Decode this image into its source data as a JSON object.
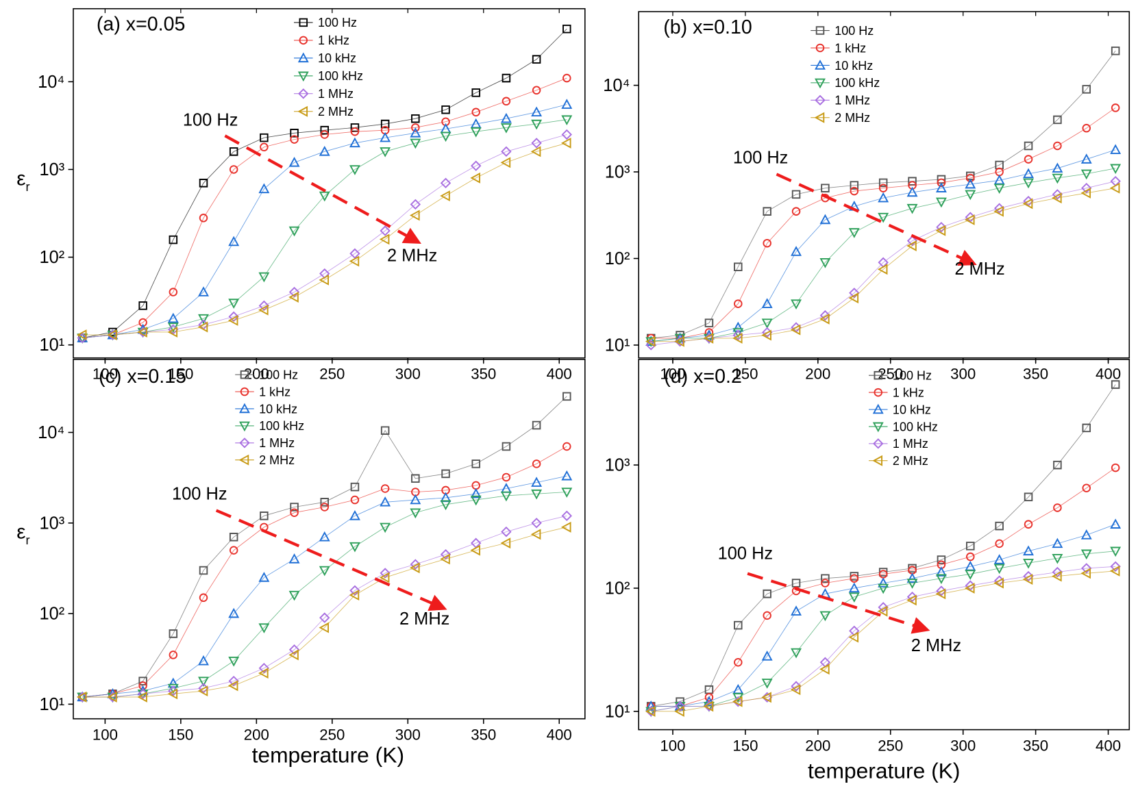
{
  "chart_data": [
    {
      "type": "line",
      "title": "(a) x=0.05",
      "y_label": "ε",
      "y_label_sub": "r",
      "x": [
        85,
        105,
        125,
        145,
        165,
        185,
        205,
        225,
        245,
        265,
        285,
        305,
        325,
        345,
        365,
        385,
        405
      ],
      "xlim": [
        79,
        417
      ],
      "xticks": [
        100,
        150,
        200,
        250,
        300,
        350,
        400
      ],
      "ylim": [
        7.1,
        68000
      ],
      "y_scale": "log",
      "yticks": [
        {
          "value": 10,
          "label": "10¹"
        },
        {
          "value": 100,
          "label": "10²"
        },
        {
          "value": 1000,
          "label": "10³"
        },
        {
          "value": 10000,
          "label": "10⁴"
        }
      ],
      "annotations": [
        "100 Hz",
        "2 MHz"
      ],
      "series": [
        {
          "name": "100 Hz",
          "color": "#000000",
          "marker": "square",
          "values": [
            12,
            14,
            28,
            158,
            700,
            1600,
            2300,
            2600,
            2800,
            3000,
            3300,
            3800,
            4800,
            7500,
            11000,
            18000,
            40000
          ]
        },
        {
          "name": "1 kHz",
          "color": "#e8302a",
          "marker": "circle",
          "values": [
            12,
            13,
            18,
            40,
            280,
            1000,
            1800,
            2200,
            2500,
            2700,
            2800,
            3000,
            3500,
            4500,
            6000,
            8000,
            11000
          ]
        },
        {
          "name": "10 kHz",
          "color": "#1f6fd6",
          "marker": "triangle-up",
          "values": [
            12,
            13,
            15,
            20,
            40,
            150,
            600,
            1200,
            1600,
            2000,
            2300,
            2600,
            2900,
            3300,
            3800,
            4500,
            5500
          ]
        },
        {
          "name": "100 kHz",
          "color": "#2ea05a",
          "marker": "triangle-down",
          "values": [
            12,
            13,
            14,
            16,
            20,
            30,
            60,
            200,
            500,
            1000,
            1600,
            2000,
            2400,
            2700,
            3000,
            3300,
            3700
          ]
        },
        {
          "name": "1 MHz",
          "color": "#a86ee0",
          "marker": "diamond",
          "values": [
            12,
            13,
            14,
            15,
            17,
            21,
            28,
            40,
            65,
            110,
            200,
            400,
            700,
            1100,
            1600,
            2000,
            2500
          ]
        },
        {
          "name": "2 MHz",
          "color": "#c89a14",
          "marker": "triangle-left",
          "values": [
            13,
            13,
            14,
            14,
            16,
            19,
            25,
            35,
            55,
            90,
            160,
            300,
            500,
            800,
            1200,
            1600,
            2000
          ]
        }
      ]
    },
    {
      "type": "line",
      "title": "(b) x=0.10",
      "x": [
        85,
        105,
        125,
        145,
        165,
        185,
        205,
        225,
        245,
        265,
        285,
        305,
        325,
        345,
        365,
        385,
        405
      ],
      "xlim": [
        76.5,
        414.5
      ],
      "xticks": [
        100,
        150,
        200,
        250,
        300,
        350,
        400
      ],
      "ylim": [
        7.1,
        71000
      ],
      "y_scale": "log",
      "yticks": [
        {
          "value": 10,
          "label": "10¹"
        },
        {
          "value": 100,
          "label": "10²"
        },
        {
          "value": 1000,
          "label": "10³"
        },
        {
          "value": 10000,
          "label": "10⁴"
        }
      ],
      "annotations": [
        "100 Hz",
        "2 MHz"
      ],
      "series": [
        {
          "name": "100 Hz",
          "color": "#555555",
          "marker": "square",
          "values": [
            12,
            13,
            18,
            80,
            350,
            550,
            650,
            700,
            750,
            780,
            820,
            900,
            1200,
            2000,
            4000,
            9000,
            25000
          ]
        },
        {
          "name": "1 kHz",
          "color": "#e8302a",
          "marker": "circle",
          "values": [
            12,
            12,
            14,
            30,
            150,
            350,
            500,
            600,
            650,
            700,
            750,
            850,
            1000,
            1400,
            2000,
            3200,
            5500
          ]
        },
        {
          "name": "10 kHz",
          "color": "#1f6fd6",
          "marker": "triangle-up",
          "values": [
            11,
            12,
            13,
            16,
            30,
            120,
            280,
            400,
            500,
            580,
            650,
            720,
            800,
            950,
            1100,
            1400,
            1800
          ]
        },
        {
          "name": "100 kHz",
          "color": "#2ea05a",
          "marker": "triangle-down",
          "values": [
            11,
            12,
            12,
            14,
            18,
            30,
            90,
            200,
            300,
            380,
            450,
            550,
            650,
            750,
            850,
            950,
            1100
          ]
        },
        {
          "name": "1 MHz",
          "color": "#a86ee0",
          "marker": "diamond",
          "values": [
            10,
            11,
            12,
            13,
            14,
            16,
            22,
            40,
            90,
            160,
            230,
            300,
            380,
            460,
            550,
            650,
            780
          ]
        },
        {
          "name": "2 MHz",
          "color": "#c89a14",
          "marker": "triangle-left",
          "values": [
            11,
            11,
            12,
            12,
            13,
            15,
            20,
            35,
            75,
            140,
            210,
            280,
            350,
            430,
            500,
            570,
            650
          ]
        }
      ]
    },
    {
      "type": "line",
      "title": "(c) x=0.15",
      "y_label": "ε",
      "y_label_sub": "r",
      "x_label": "temperature (K)",
      "x": [
        85,
        105,
        125,
        145,
        165,
        185,
        205,
        225,
        245,
        265,
        285,
        305,
        325,
        345,
        365,
        385,
        405
      ],
      "xlim": [
        79,
        417
      ],
      "xticks": [
        100,
        150,
        200,
        250,
        300,
        350,
        400
      ],
      "ylim": [
        6.9,
        64000
      ],
      "y_scale": "log",
      "yticks": [
        {
          "value": 10,
          "label": "10¹"
        },
        {
          "value": 100,
          "label": "10²"
        },
        {
          "value": 1000,
          "label": "10³"
        },
        {
          "value": 10000,
          "label": "10⁴"
        }
      ],
      "annotations": [
        "100 Hz",
        "2 MHz"
      ],
      "series": [
        {
          "name": "100 Hz",
          "color": "#555555",
          "marker": "square",
          "values": [
            12,
            13,
            18,
            60,
            300,
            700,
            1200,
            1500,
            1700,
            2500,
            10500,
            3100,
            3500,
            4500,
            7000,
            12000,
            25000
          ]
        },
        {
          "name": "1 kHz",
          "color": "#e8302a",
          "marker": "circle",
          "values": [
            12,
            13,
            16,
            35,
            150,
            500,
            900,
            1300,
            1500,
            1800,
            2400,
            2200,
            2300,
            2600,
            3200,
            4500,
            7000
          ]
        },
        {
          "name": "10 kHz",
          "color": "#1f6fd6",
          "marker": "triangle-up",
          "values": [
            12,
            13,
            14,
            17,
            30,
            100,
            250,
            400,
            700,
            1200,
            1700,
            1800,
            1900,
            2100,
            2400,
            2800,
            3300
          ]
        },
        {
          "name": "100 kHz",
          "color": "#2ea05a",
          "marker": "triangle-down",
          "values": [
            12,
            12,
            13,
            15,
            18,
            30,
            70,
            160,
            300,
            550,
            900,
            1300,
            1600,
            1800,
            2000,
            2100,
            2200
          ]
        },
        {
          "name": "1 MHz",
          "color": "#a86ee0",
          "marker": "diamond",
          "values": [
            12,
            12,
            13,
            14,
            15,
            18,
            25,
            40,
            90,
            180,
            280,
            350,
            450,
            600,
            800,
            1000,
            1200
          ]
        },
        {
          "name": "2 MHz",
          "color": "#c89a14",
          "marker": "triangle-left",
          "values": [
            12,
            12,
            12,
            13,
            14,
            16,
            22,
            35,
            70,
            160,
            250,
            320,
            400,
            500,
            600,
            750,
            900
          ]
        }
      ]
    },
    {
      "type": "line",
      "title": "(d) x=0.2",
      "x_label": "temperature (K)",
      "x": [
        85,
        105,
        125,
        145,
        165,
        185,
        205,
        225,
        245,
        265,
        285,
        305,
        325,
        345,
        365,
        385,
        405
      ],
      "xlim": [
        76.5,
        414.5
      ],
      "xticks": [
        100,
        150,
        200,
        250,
        300,
        350,
        400
      ],
      "ylim": [
        7.1,
        7200
      ],
      "y_scale": "log",
      "yticks": [
        {
          "value": 10,
          "label": "10¹"
        },
        {
          "value": 100,
          "label": "10²"
        },
        {
          "value": 1000,
          "label": "10³"
        }
      ],
      "annotations": [
        "100 Hz",
        "2 MHz"
      ],
      "series": [
        {
          "name": "100 Hz",
          "color": "#555555",
          "marker": "square",
          "values": [
            11,
            12,
            15,
            50,
            90,
            110,
            120,
            125,
            135,
            145,
            170,
            220,
            320,
            550,
            1000,
            2000,
            4500
          ]
        },
        {
          "name": "1 kHz",
          "color": "#e8302a",
          "marker": "circle",
          "values": [
            11,
            11,
            13,
            25,
            60,
            95,
            110,
            120,
            130,
            140,
            155,
            180,
            230,
            330,
            450,
            650,
            950
          ]
        },
        {
          "name": "10 kHz",
          "color": "#1f6fd6",
          "marker": "triangle-up",
          "values": [
            11,
            11,
            12,
            15,
            28,
            65,
            90,
            100,
            110,
            120,
            135,
            150,
            170,
            200,
            230,
            270,
            330
          ]
        },
        {
          "name": "100 kHz",
          "color": "#2ea05a",
          "marker": "triangle-down",
          "values": [
            10,
            11,
            11,
            13,
            17,
            30,
            60,
            85,
            100,
            110,
            120,
            130,
            145,
            160,
            175,
            190,
            200
          ]
        },
        {
          "name": "1 MHz",
          "color": "#a86ee0",
          "marker": "diamond",
          "values": [
            10,
            11,
            11,
            12,
            13,
            16,
            25,
            45,
            70,
            85,
            95,
            105,
            115,
            125,
            135,
            145,
            150
          ]
        },
        {
          "name": "2 MHz",
          "color": "#c89a14",
          "marker": "triangle-left",
          "values": [
            10,
            10,
            11,
            12,
            13,
            15,
            22,
            40,
            65,
            80,
            90,
            100,
            110,
            118,
            125,
            132,
            138
          ]
        }
      ]
    }
  ]
}
